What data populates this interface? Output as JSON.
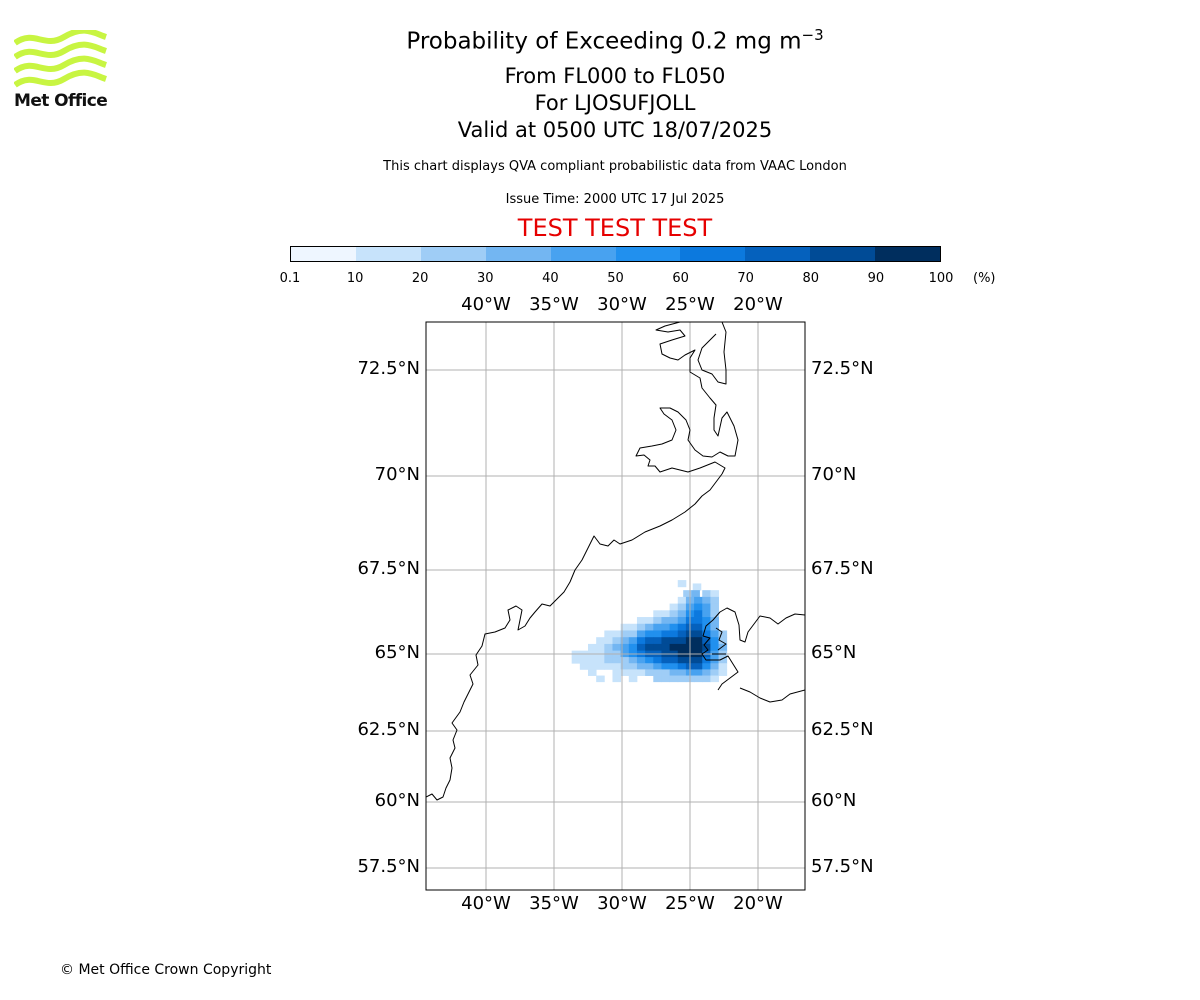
{
  "branding": {
    "logo_text": "Met Office",
    "logo_color": "#c8f542",
    "copyright": "© Met Office Crown Copyright"
  },
  "header": {
    "title_prefix": "Probability of Exceeding 0.2 mg m",
    "title_superscript": "−3",
    "flight_levels": "From FL000 to FL050",
    "volcano": "For LJOSUFJOLL",
    "valid_time": "Valid at 0500 UTC 18/07/2025",
    "description": "This chart displays QVA compliant probabilistic data from VAAC London",
    "issue_time": "Issue Time: 2000 UTC 17 Jul 2025",
    "test_banner": "TEST TEST TEST",
    "test_color": "#e60000"
  },
  "colorbar": {
    "ticks": [
      "0.1",
      "10",
      "20",
      "30",
      "40",
      "50",
      "60",
      "70",
      "80",
      "90",
      "100"
    ],
    "unit": "(%)",
    "colors": [
      "#eef6ff",
      "#c7e3fb",
      "#9fcdf6",
      "#73b6f2",
      "#48a2f0",
      "#2190ee",
      "#0c79de",
      "#0561bd",
      "#004b96",
      "#002e5e"
    ]
  },
  "map": {
    "lon_ticks": [
      "40°W",
      "35°W",
      "30°W",
      "25°W",
      "20°W"
    ],
    "lat_ticks": [
      "72.5°N",
      "70°N",
      "67.5°N",
      "65°N",
      "62.5°N",
      "60°N",
      "57.5°N"
    ],
    "grid_color": "#b0b0b0",
    "plume_cells": [
      {
        "lon": -25.6,
        "lat": 67.1,
        "level": 1
      },
      {
        "lon": -24.5,
        "lat": 67.0,
        "level": 1
      },
      {
        "lon": -25.2,
        "lat": 66.8,
        "level": 2
      },
      {
        "lon": -24.6,
        "lat": 66.8,
        "level": 3
      },
      {
        "lon": -23.8,
        "lat": 66.8,
        "level": 2
      },
      {
        "lon": -23.2,
        "lat": 66.8,
        "level": 1
      },
      {
        "lon": -25.6,
        "lat": 66.6,
        "level": 1
      },
      {
        "lon": -25.0,
        "lat": 66.6,
        "level": 3
      },
      {
        "lon": -24.4,
        "lat": 66.6,
        "level": 4
      },
      {
        "lon": -23.8,
        "lat": 66.6,
        "level": 3
      },
      {
        "lon": -23.2,
        "lat": 66.6,
        "level": 2
      },
      {
        "lon": -26.2,
        "lat": 66.4,
        "level": 1
      },
      {
        "lon": -25.6,
        "lat": 66.4,
        "level": 2
      },
      {
        "lon": -25.0,
        "lat": 66.4,
        "level": 4
      },
      {
        "lon": -24.4,
        "lat": 66.4,
        "level": 5
      },
      {
        "lon": -23.8,
        "lat": 66.4,
        "level": 4
      },
      {
        "lon": -23.2,
        "lat": 66.4,
        "level": 2
      },
      {
        "lon": -27.4,
        "lat": 66.2,
        "level": 1
      },
      {
        "lon": -26.8,
        "lat": 66.2,
        "level": 1
      },
      {
        "lon": -26.2,
        "lat": 66.2,
        "level": 2
      },
      {
        "lon": -25.6,
        "lat": 66.2,
        "level": 3
      },
      {
        "lon": -25.0,
        "lat": 66.2,
        "level": 5
      },
      {
        "lon": -24.4,
        "lat": 66.2,
        "level": 6
      },
      {
        "lon": -23.8,
        "lat": 66.2,
        "level": 4
      },
      {
        "lon": -23.2,
        "lat": 66.2,
        "level": 2
      },
      {
        "lon": -28.6,
        "lat": 66.0,
        "level": 1
      },
      {
        "lon": -28.0,
        "lat": 66.0,
        "level": 1
      },
      {
        "lon": -27.4,
        "lat": 66.0,
        "level": 2
      },
      {
        "lon": -26.8,
        "lat": 66.0,
        "level": 3
      },
      {
        "lon": -26.2,
        "lat": 66.0,
        "level": 3
      },
      {
        "lon": -25.6,
        "lat": 66.0,
        "level": 4
      },
      {
        "lon": -25.0,
        "lat": 66.0,
        "level": 6
      },
      {
        "lon": -24.4,
        "lat": 66.0,
        "level": 6
      },
      {
        "lon": -23.8,
        "lat": 66.0,
        "level": 5
      },
      {
        "lon": -23.2,
        "lat": 66.0,
        "level": 3
      },
      {
        "lon": -29.8,
        "lat": 65.8,
        "level": 1
      },
      {
        "lon": -29.2,
        "lat": 65.8,
        "level": 1
      },
      {
        "lon": -28.6,
        "lat": 65.8,
        "level": 2
      },
      {
        "lon": -28.0,
        "lat": 65.8,
        "level": 3
      },
      {
        "lon": -27.4,
        "lat": 65.8,
        "level": 4
      },
      {
        "lon": -26.8,
        "lat": 65.8,
        "level": 4
      },
      {
        "lon": -26.2,
        "lat": 65.8,
        "level": 5
      },
      {
        "lon": -25.6,
        "lat": 65.8,
        "level": 6
      },
      {
        "lon": -25.0,
        "lat": 65.8,
        "level": 7
      },
      {
        "lon": -24.4,
        "lat": 65.8,
        "level": 7
      },
      {
        "lon": -23.8,
        "lat": 65.8,
        "level": 5
      },
      {
        "lon": -23.2,
        "lat": 65.8,
        "level": 3
      },
      {
        "lon": -31.0,
        "lat": 65.6,
        "level": 1
      },
      {
        "lon": -30.4,
        "lat": 65.6,
        "level": 1
      },
      {
        "lon": -29.8,
        "lat": 65.6,
        "level": 2
      },
      {
        "lon": -29.2,
        "lat": 65.6,
        "level": 2
      },
      {
        "lon": -28.6,
        "lat": 65.6,
        "level": 4
      },
      {
        "lon": -28.0,
        "lat": 65.6,
        "level": 5
      },
      {
        "lon": -27.4,
        "lat": 65.6,
        "level": 5
      },
      {
        "lon": -26.8,
        "lat": 65.6,
        "level": 6
      },
      {
        "lon": -26.2,
        "lat": 65.6,
        "level": 6
      },
      {
        "lon": -25.6,
        "lat": 65.6,
        "level": 7
      },
      {
        "lon": -25.0,
        "lat": 65.6,
        "level": 8
      },
      {
        "lon": -24.4,
        "lat": 65.6,
        "level": 8
      },
      {
        "lon": -23.8,
        "lat": 65.6,
        "level": 6
      },
      {
        "lon": -23.2,
        "lat": 65.6,
        "level": 4
      },
      {
        "lon": -22.6,
        "lat": 65.6,
        "level": 2
      },
      {
        "lon": -31.6,
        "lat": 65.4,
        "level": 1
      },
      {
        "lon": -31.0,
        "lat": 65.4,
        "level": 1
      },
      {
        "lon": -30.4,
        "lat": 65.4,
        "level": 2
      },
      {
        "lon": -29.8,
        "lat": 65.4,
        "level": 3
      },
      {
        "lon": -29.2,
        "lat": 65.4,
        "level": 4
      },
      {
        "lon": -28.6,
        "lat": 65.4,
        "level": 6
      },
      {
        "lon": -28.0,
        "lat": 65.4,
        "level": 7
      },
      {
        "lon": -27.4,
        "lat": 65.4,
        "level": 7
      },
      {
        "lon": -26.8,
        "lat": 65.4,
        "level": 8
      },
      {
        "lon": -26.2,
        "lat": 65.4,
        "level": 8
      },
      {
        "lon": -25.6,
        "lat": 65.4,
        "level": 8
      },
      {
        "lon": -25.0,
        "lat": 65.4,
        "level": 9
      },
      {
        "lon": -24.4,
        "lat": 65.4,
        "level": 9
      },
      {
        "lon": -23.8,
        "lat": 65.4,
        "level": 7
      },
      {
        "lon": -23.2,
        "lat": 65.4,
        "level": 5
      },
      {
        "lon": -22.6,
        "lat": 65.4,
        "level": 2
      },
      {
        "lon": -32.2,
        "lat": 65.2,
        "level": 1
      },
      {
        "lon": -31.6,
        "lat": 65.2,
        "level": 1
      },
      {
        "lon": -31.0,
        "lat": 65.2,
        "level": 2
      },
      {
        "lon": -30.4,
        "lat": 65.2,
        "level": 3
      },
      {
        "lon": -29.8,
        "lat": 65.2,
        "level": 4
      },
      {
        "lon": -29.2,
        "lat": 65.2,
        "level": 5
      },
      {
        "lon": -28.6,
        "lat": 65.2,
        "level": 7
      },
      {
        "lon": -28.0,
        "lat": 65.2,
        "level": 8
      },
      {
        "lon": -27.4,
        "lat": 65.2,
        "level": 8
      },
      {
        "lon": -26.8,
        "lat": 65.2,
        "level": 8
      },
      {
        "lon": -26.2,
        "lat": 65.2,
        "level": 9
      },
      {
        "lon": -25.6,
        "lat": 65.2,
        "level": 9
      },
      {
        "lon": -25.0,
        "lat": 65.2,
        "level": 10
      },
      {
        "lon": -24.4,
        "lat": 65.2,
        "level": 9
      },
      {
        "lon": -23.8,
        "lat": 65.2,
        "level": 8
      },
      {
        "lon": -23.2,
        "lat": 65.2,
        "level": 5
      },
      {
        "lon": -22.6,
        "lat": 65.2,
        "level": 3
      },
      {
        "lon": -33.4,
        "lat": 65.0,
        "level": 1
      },
      {
        "lon": -32.8,
        "lat": 65.0,
        "level": 1
      },
      {
        "lon": -32.2,
        "lat": 65.0,
        "level": 1
      },
      {
        "lon": -31.6,
        "lat": 65.0,
        "level": 1
      },
      {
        "lon": -31.0,
        "lat": 65.0,
        "level": 2
      },
      {
        "lon": -30.4,
        "lat": 65.0,
        "level": 2
      },
      {
        "lon": -29.8,
        "lat": 65.0,
        "level": 4
      },
      {
        "lon": -29.2,
        "lat": 65.0,
        "level": 5
      },
      {
        "lon": -28.6,
        "lat": 65.0,
        "level": 6
      },
      {
        "lon": -28.0,
        "lat": 65.0,
        "level": 7
      },
      {
        "lon": -27.4,
        "lat": 65.0,
        "level": 7
      },
      {
        "lon": -26.8,
        "lat": 65.0,
        "level": 8
      },
      {
        "lon": -26.2,
        "lat": 65.0,
        "level": 8
      },
      {
        "lon": -25.6,
        "lat": 65.0,
        "level": 9
      },
      {
        "lon": -25.0,
        "lat": 65.0,
        "level": 10
      },
      {
        "lon": -24.4,
        "lat": 65.0,
        "level": 9
      },
      {
        "lon": -23.8,
        "lat": 65.0,
        "level": 7
      },
      {
        "lon": -23.2,
        "lat": 65.0,
        "level": 4
      },
      {
        "lon": -22.6,
        "lat": 65.0,
        "level": 2
      },
      {
        "lon": -33.4,
        "lat": 64.8,
        "level": 1
      },
      {
        "lon": -32.8,
        "lat": 64.8,
        "level": 1
      },
      {
        "lon": -32.2,
        "lat": 64.8,
        "level": 1
      },
      {
        "lon": -31.6,
        "lat": 64.8,
        "level": 1
      },
      {
        "lon": -31.0,
        "lat": 64.8,
        "level": 2
      },
      {
        "lon": -30.4,
        "lat": 64.8,
        "level": 2
      },
      {
        "lon": -29.8,
        "lat": 64.8,
        "level": 2
      },
      {
        "lon": -29.2,
        "lat": 64.8,
        "level": 3
      },
      {
        "lon": -28.6,
        "lat": 64.8,
        "level": 4
      },
      {
        "lon": -28.0,
        "lat": 64.8,
        "level": 5
      },
      {
        "lon": -27.4,
        "lat": 64.8,
        "level": 6
      },
      {
        "lon": -26.8,
        "lat": 64.8,
        "level": 7
      },
      {
        "lon": -26.2,
        "lat": 64.8,
        "level": 7
      },
      {
        "lon": -25.6,
        "lat": 64.8,
        "level": 8
      },
      {
        "lon": -25.0,
        "lat": 64.8,
        "level": 8
      },
      {
        "lon": -24.4,
        "lat": 64.8,
        "level": 8
      },
      {
        "lon": -23.8,
        "lat": 64.8,
        "level": 6
      },
      {
        "lon": -23.2,
        "lat": 64.8,
        "level": 4
      },
      {
        "lon": -22.6,
        "lat": 64.8,
        "level": 2
      },
      {
        "lon": -32.8,
        "lat": 64.6,
        "level": 1
      },
      {
        "lon": -32.2,
        "lat": 64.6,
        "level": 1
      },
      {
        "lon": -31.6,
        "lat": 64.6,
        "level": 1
      },
      {
        "lon": -31.0,
        "lat": 64.6,
        "level": 1
      },
      {
        "lon": -30.4,
        "lat": 64.6,
        "level": 1
      },
      {
        "lon": -29.8,
        "lat": 64.6,
        "level": 2
      },
      {
        "lon": -29.2,
        "lat": 64.6,
        "level": 2
      },
      {
        "lon": -28.6,
        "lat": 64.6,
        "level": 3
      },
      {
        "lon": -28.0,
        "lat": 64.6,
        "level": 3
      },
      {
        "lon": -27.4,
        "lat": 64.6,
        "level": 4
      },
      {
        "lon": -26.8,
        "lat": 64.6,
        "level": 5
      },
      {
        "lon": -26.2,
        "lat": 64.6,
        "level": 5
      },
      {
        "lon": -25.6,
        "lat": 64.6,
        "level": 6
      },
      {
        "lon": -25.0,
        "lat": 64.6,
        "level": 7
      },
      {
        "lon": -24.4,
        "lat": 64.6,
        "level": 7
      },
      {
        "lon": -23.8,
        "lat": 64.6,
        "level": 5
      },
      {
        "lon": -23.2,
        "lat": 64.6,
        "level": 3
      },
      {
        "lon": -22.6,
        "lat": 64.6,
        "level": 1
      },
      {
        "lon": -32.2,
        "lat": 64.4,
        "level": 1
      },
      {
        "lon": -30.4,
        "lat": 64.4,
        "level": 1
      },
      {
        "lon": -29.8,
        "lat": 64.4,
        "level": 1
      },
      {
        "lon": -29.2,
        "lat": 64.4,
        "level": 1
      },
      {
        "lon": -28.6,
        "lat": 64.4,
        "level": 1
      },
      {
        "lon": -28.0,
        "lat": 64.4,
        "level": 2
      },
      {
        "lon": -27.4,
        "lat": 64.4,
        "level": 2
      },
      {
        "lon": -26.8,
        "lat": 64.4,
        "level": 2
      },
      {
        "lon": -26.2,
        "lat": 64.4,
        "level": 3
      },
      {
        "lon": -25.6,
        "lat": 64.4,
        "level": 3
      },
      {
        "lon": -25.0,
        "lat": 64.4,
        "level": 4
      },
      {
        "lon": -24.4,
        "lat": 64.4,
        "level": 4
      },
      {
        "lon": -23.8,
        "lat": 64.4,
        "level": 3
      },
      {
        "lon": -23.2,
        "lat": 64.4,
        "level": 2
      },
      {
        "lon": -22.6,
        "lat": 64.4,
        "level": 1
      },
      {
        "lon": -31.6,
        "lat": 64.2,
        "level": 1
      },
      {
        "lon": -30.4,
        "lat": 64.2,
        "level": 1
      },
      {
        "lon": -29.2,
        "lat": 64.2,
        "level": 1
      },
      {
        "lon": -27.4,
        "lat": 64.2,
        "level": 2
      },
      {
        "lon": -26.8,
        "lat": 64.2,
        "level": 2
      },
      {
        "lon": -26.2,
        "lat": 64.2,
        "level": 2
      },
      {
        "lon": -25.6,
        "lat": 64.2,
        "level": 2
      },
      {
        "lon": -25.0,
        "lat": 64.2,
        "level": 2
      },
      {
        "lon": -24.4,
        "lat": 64.2,
        "level": 2
      },
      {
        "lon": -23.8,
        "lat": 64.2,
        "level": 2
      },
      {
        "lon": -23.2,
        "lat": 64.2,
        "level": 1
      }
    ]
  }
}
